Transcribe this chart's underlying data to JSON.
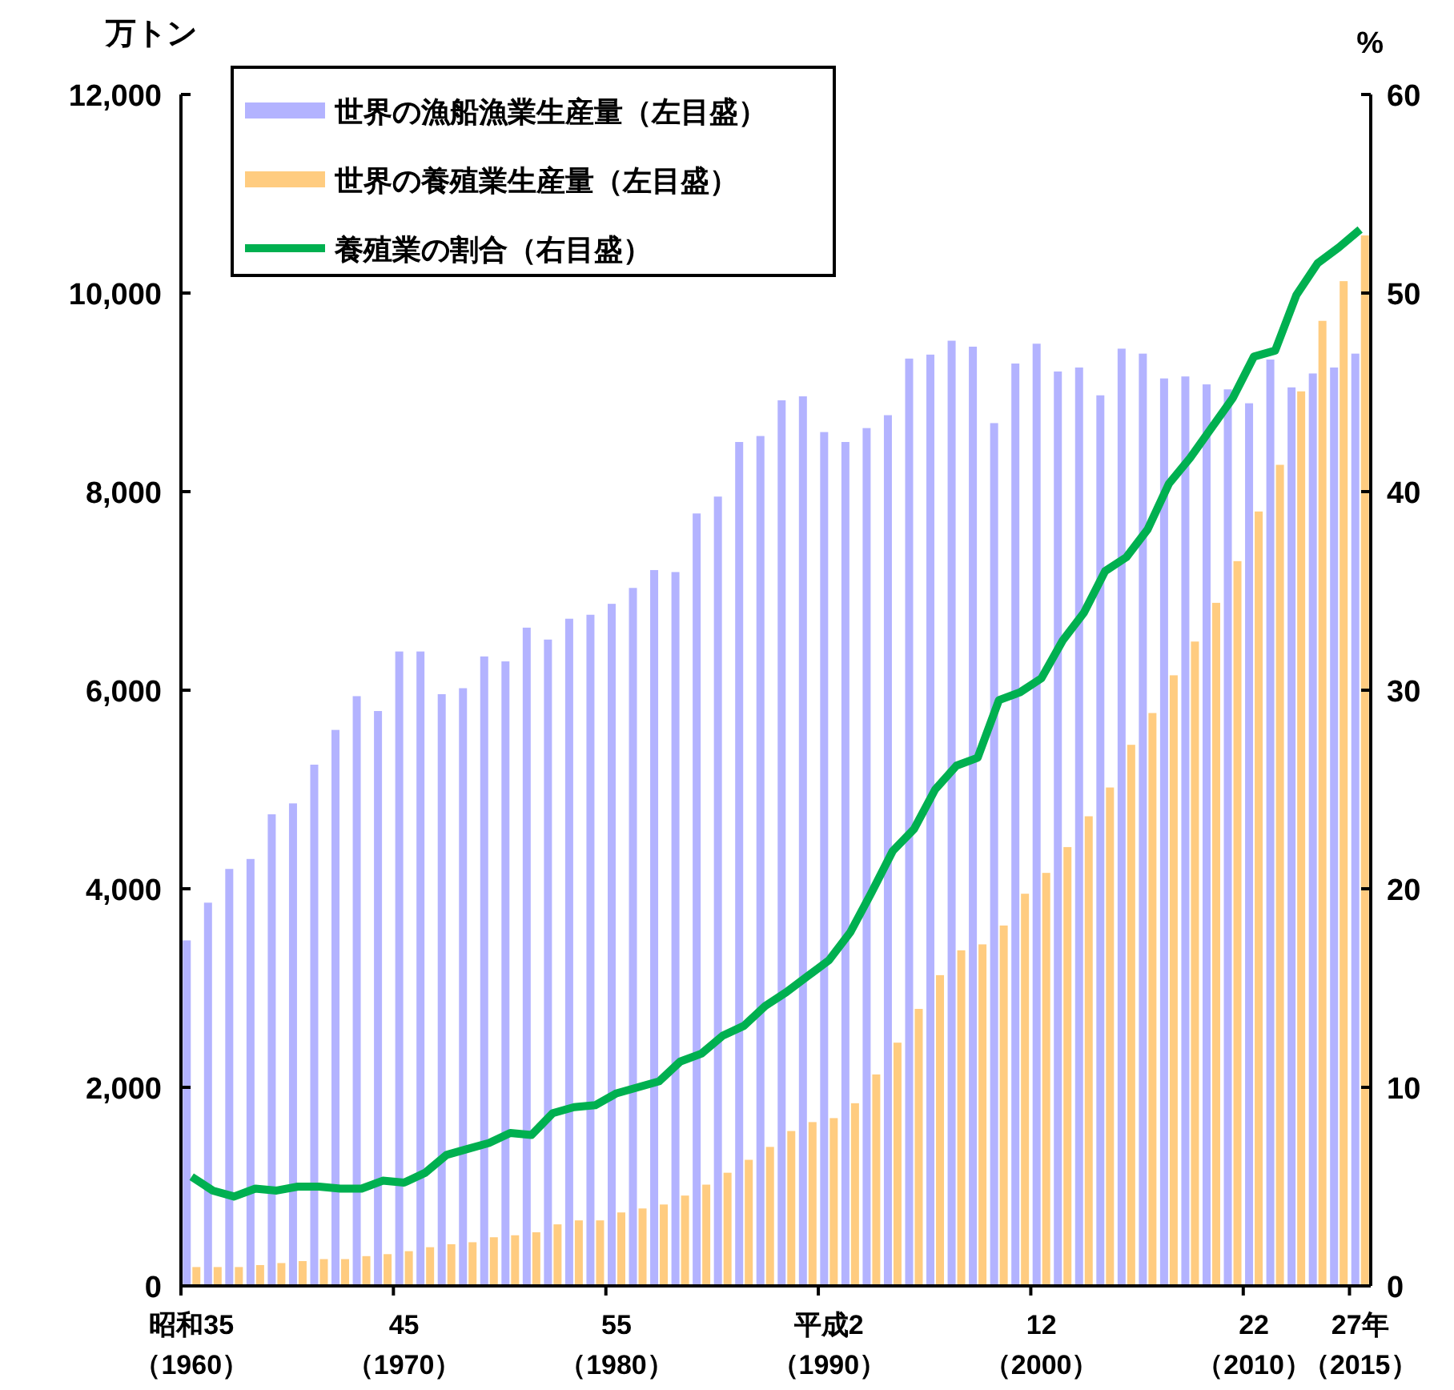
{
  "chart_data": {
    "type": "bar",
    "ylabel": "万トン",
    "y2label": "%",
    "categories": [
      "昭和35（1960）",
      null,
      null,
      null,
      null,
      null,
      null,
      null,
      null,
      null,
      "45（1970）",
      null,
      null,
      null,
      null,
      null,
      null,
      null,
      null,
      null,
      "55（1980）",
      null,
      null,
      null,
      null,
      null,
      null,
      null,
      null,
      null,
      "平成2（1990）",
      null,
      null,
      null,
      null,
      null,
      null,
      null,
      null,
      null,
      "12（2000）",
      null,
      null,
      null,
      null,
      null,
      null,
      null,
      null,
      null,
      "22（2010）",
      null,
      null,
      null,
      null,
      "27年（2015）"
    ],
    "series": [
      {
        "name": "世界の漁船漁業生産量（左目盛）",
        "color": "#b3b3ff",
        "values": [
          3480,
          3860,
          4200,
          4300,
          4750,
          4860,
          5250,
          5600,
          5940,
          5790,
          6390,
          6390,
          5960,
          6020,
          6340,
          6290,
          6630,
          6510,
          6720,
          6760,
          6870,
          7030,
          7210,
          7190,
          7780,
          7950,
          8500,
          8560,
          8920,
          8960,
          8600,
          8500,
          8640,
          8770,
          9340,
          9380,
          9520,
          9460,
          8690,
          9290,
          9490,
          9210,
          9250,
          8970,
          9440,
          9390,
          9140,
          9160,
          9080,
          9030,
          8890,
          9330,
          9050,
          9190,
          9250,
          9390
        ]
      },
      {
        "name": "世界の養殖業生産量（左目盛）",
        "color": "#ffcc80",
        "values": [
          190,
          190,
          190,
          210,
          230,
          250,
          270,
          270,
          300,
          320,
          350,
          390,
          420,
          440,
          490,
          510,
          540,
          620,
          660,
          660,
          740,
          780,
          820,
          910,
          1020,
          1140,
          1270,
          1400,
          1560,
          1650,
          1690,
          1840,
          2130,
          2450,
          2790,
          3130,
          3380,
          3440,
          3630,
          3950,
          4160,
          4420,
          4730,
          5020,
          5450,
          5770,
          6150,
          6490,
          6880,
          7300,
          7800,
          8270,
          9010,
          9720,
          10120,
          10580
        ]
      },
      {
        "name": "養殖業の割合（右目盛）",
        "type": "line",
        "axis": "y2",
        "color": "#00b050",
        "values": [
          5.5,
          4.8,
          4.5,
          4.9,
          4.8,
          5.0,
          5.0,
          4.9,
          4.9,
          5.3,
          5.2,
          5.7,
          6.6,
          6.9,
          7.2,
          7.7,
          7.6,
          8.7,
          9.0,
          9.1,
          9.7,
          10.0,
          10.3,
          11.3,
          11.7,
          12.6,
          13.1,
          14.1,
          14.8,
          15.6,
          16.4,
          17.8,
          19.8,
          21.9,
          23.0,
          25.0,
          26.2,
          26.6,
          29.5,
          29.9,
          30.6,
          32.5,
          33.9,
          36.0,
          36.7,
          38.1,
          40.4,
          41.7,
          43.2,
          44.7,
          46.8,
          47.1,
          49.9,
          51.5,
          52.3,
          53.2
        ]
      }
    ],
    "ylim": [
      0,
      12000
    ],
    "yticks": [
      0,
      {
        "value": 2000,
        "label": "2,000"
      },
      {
        "value": 4000,
        "label": "4,000"
      },
      {
        "value": 6000,
        "label": "6,000"
      },
      {
        "value": 8000,
        "label": "8,000"
      },
      {
        "value": 10000,
        "label": "10,000"
      },
      {
        "value": 12000,
        "label": "12,000"
      }
    ],
    "y2lim": [
      0,
      60
    ],
    "y2ticks": [
      0,
      10,
      20,
      30,
      40,
      50,
      60
    ],
    "marker": "none",
    "legend": "top left"
  }
}
